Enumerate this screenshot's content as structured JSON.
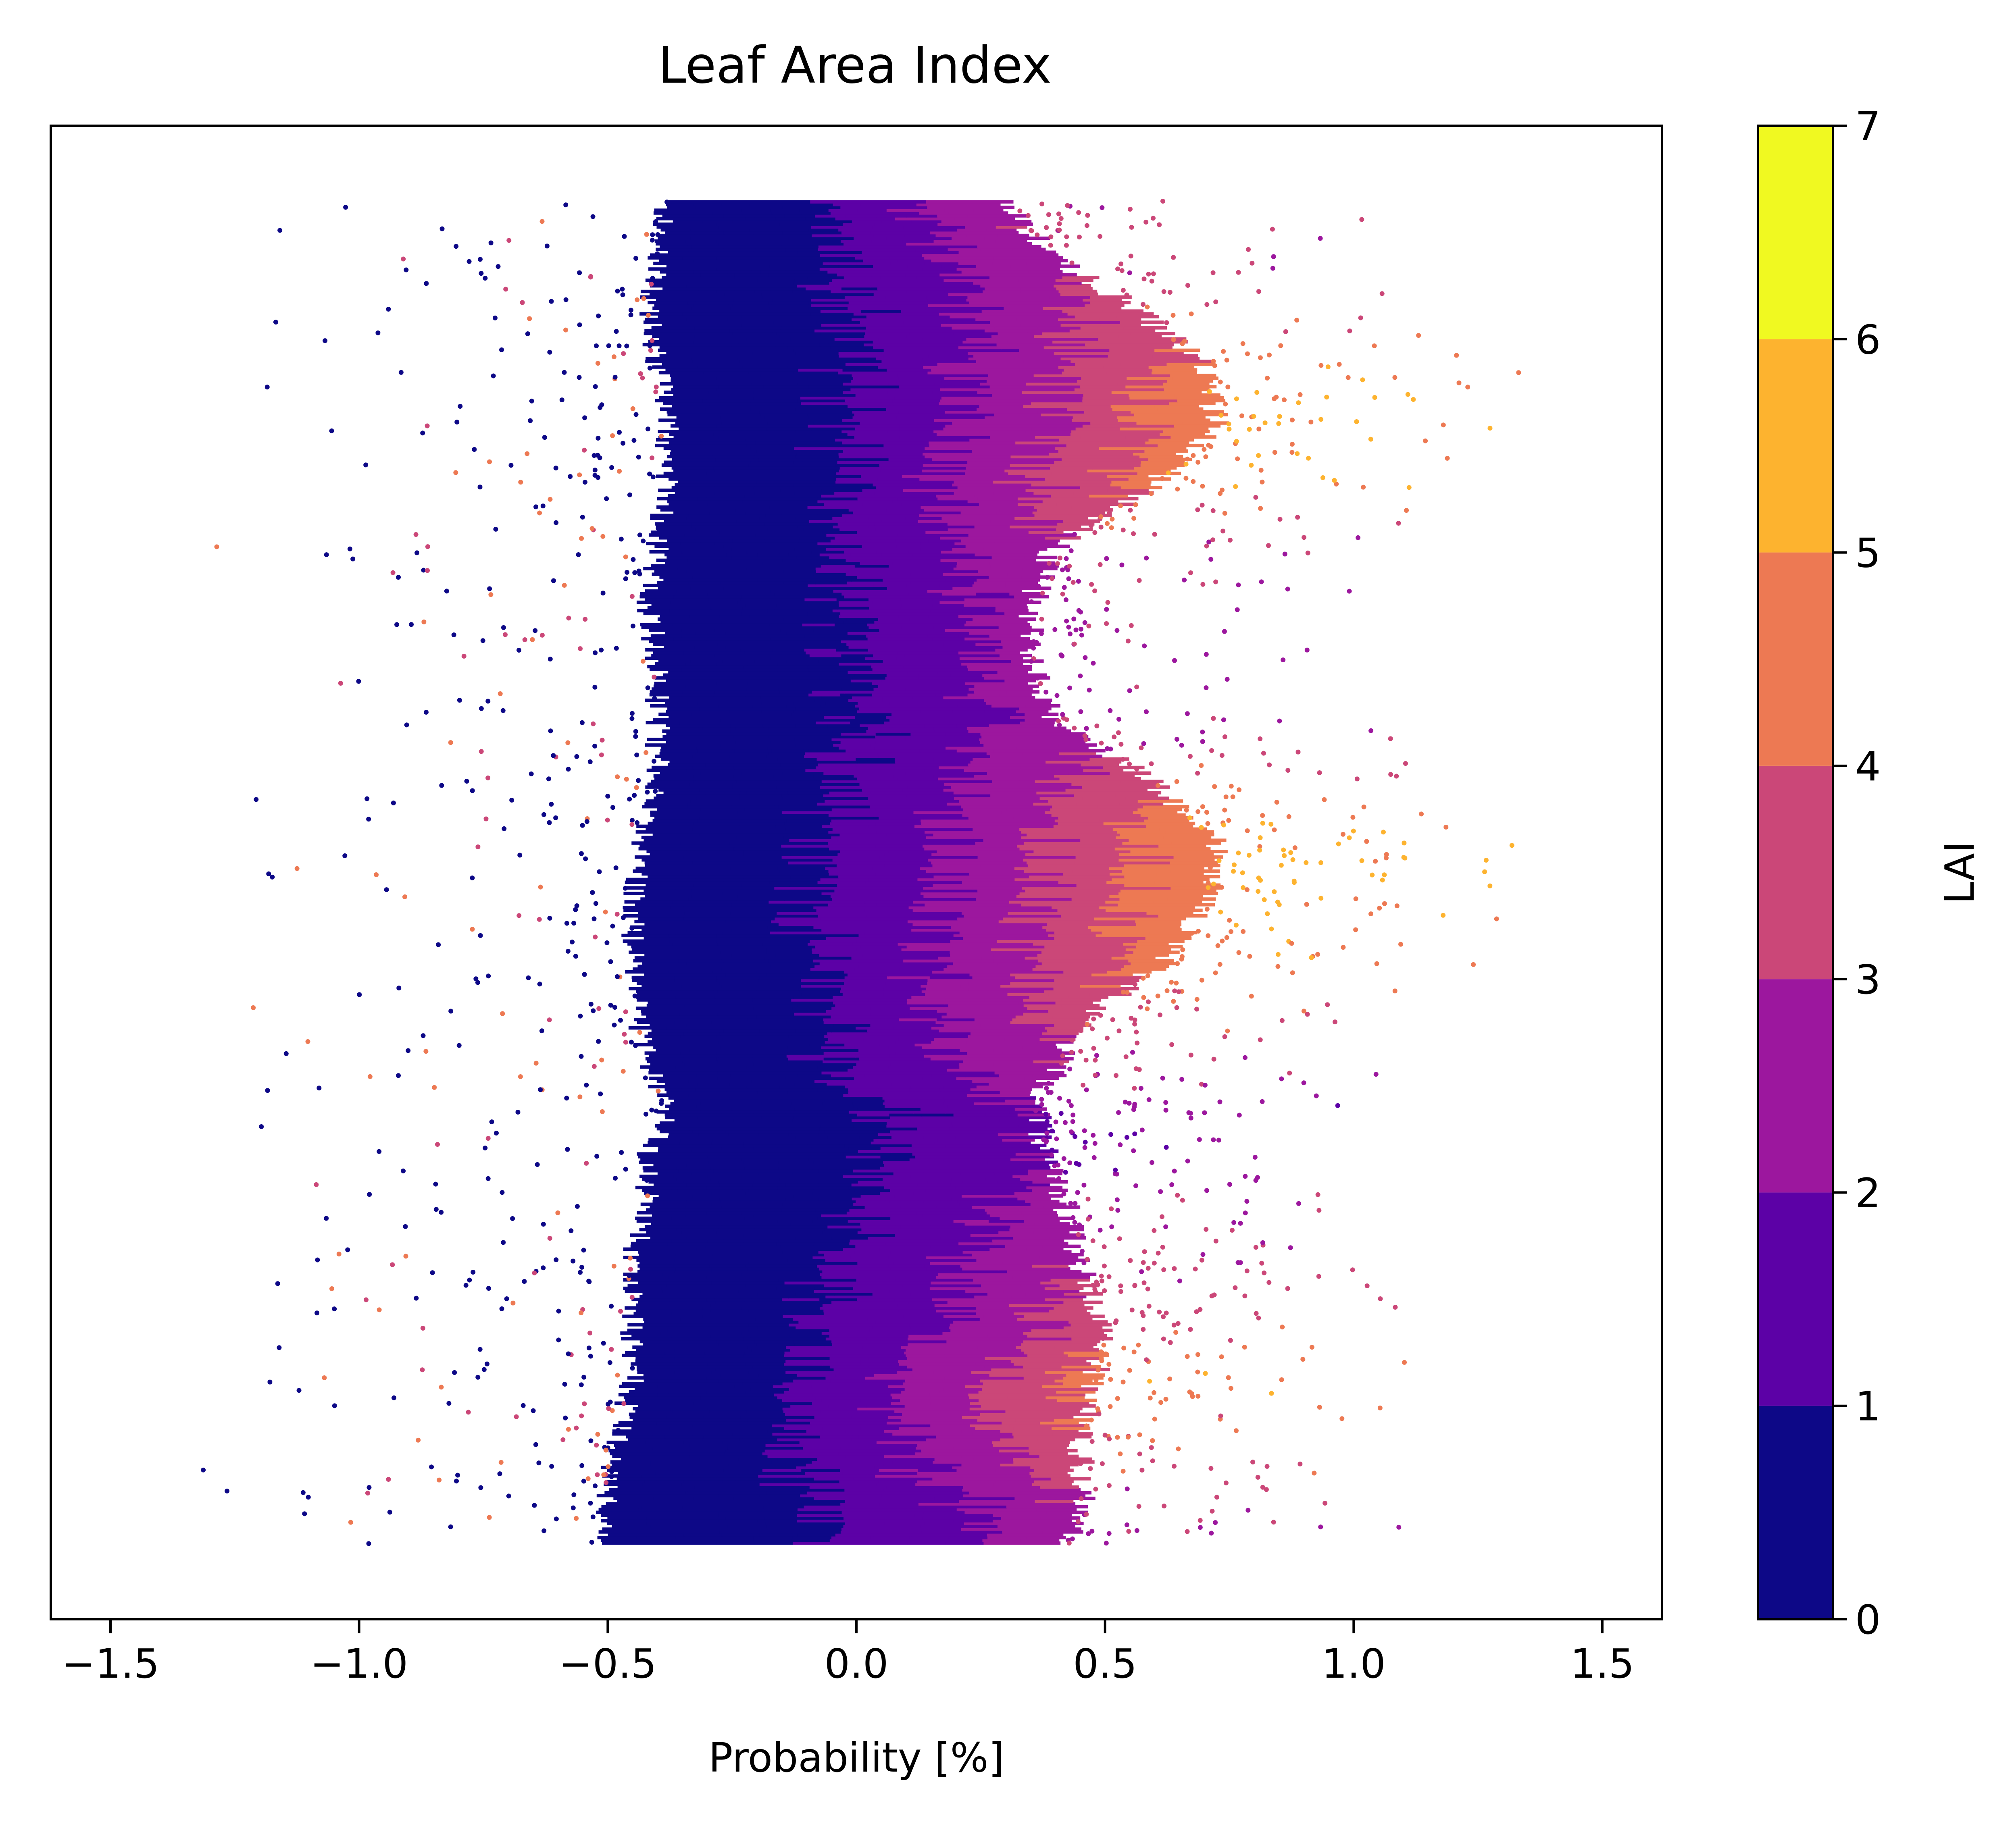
{
  "chart_data": {
    "type": "scatter",
    "title": "Leaf Area Index",
    "xlabel": "Probability [%]",
    "ylabel": "",
    "xlim": [
      -1.62,
      1.62
    ],
    "ylim": [
      0,
      1
    ],
    "x_ticks": [
      -1.5,
      -1.0,
      -0.5,
      0.0,
      0.5,
      1.0,
      1.5
    ],
    "x_tick_labels": [
      "−1.5",
      "−1.0",
      "−0.5",
      "0.0",
      "0.5",
      "1.0",
      "1.5"
    ],
    "y_ticks_shown": false,
    "grid": false,
    "colormap": "plasma",
    "colorbar": {
      "label": "LAI",
      "range": [
        0,
        7
      ],
      "ticks": [
        0,
        1,
        2,
        3,
        4,
        5,
        6,
        7
      ],
      "tick_labels": [
        "0",
        "1",
        "2",
        "3",
        "4",
        "5",
        "6",
        "7"
      ],
      "bin_colors": [
        "#0d0887",
        "#5c01a6",
        "#9c179e",
        "#cb4778",
        "#ed7953",
        "#fdb32f",
        "#f0f921"
      ]
    },
    "density_profile": {
      "description_units": "x extent of point cloud (Probability [%]) by normalized vertical position (0 = bottom, 1 = top)",
      "y": [
        0.05,
        0.08,
        0.12,
        0.16,
        0.2,
        0.24,
        0.28,
        0.31,
        0.34,
        0.37,
        0.4,
        0.44,
        0.48,
        0.52,
        0.56,
        0.6,
        0.64,
        0.68,
        0.72,
        0.76,
        0.8,
        0.84,
        0.88,
        0.91,
        0.95
      ],
      "x_min": [
        -0.52,
        -0.5,
        -0.48,
        -0.45,
        -0.45,
        -0.45,
        -0.42,
        -0.42,
        -0.38,
        -0.42,
        -0.44,
        -0.45,
        -0.45,
        -0.43,
        -0.4,
        -0.4,
        -0.4,
        -0.42,
        -0.4,
        -0.38,
        -0.38,
        -0.4,
        -0.42,
        -0.4,
        -0.38
      ],
      "x_max": [
        0.42,
        0.45,
        0.45,
        0.48,
        0.5,
        0.45,
        0.42,
        0.38,
        0.36,
        0.4,
        0.45,
        0.62,
        0.7,
        0.72,
        0.6,
        0.4,
        0.35,
        0.35,
        0.4,
        0.6,
        0.72,
        0.7,
        0.55,
        0.4,
        0.3
      ],
      "lai_at_max": [
        2.5,
        3.0,
        4.0,
        4.5,
        3.5,
        3.0,
        2.5,
        2.0,
        2.0,
        3.0,
        3.5,
        4.5,
        5.0,
        5.0,
        4.0,
        2.5,
        2.5,
        2.5,
        3.0,
        4.5,
        5.0,
        4.5,
        3.5,
        3.0,
        3.0
      ]
    }
  }
}
